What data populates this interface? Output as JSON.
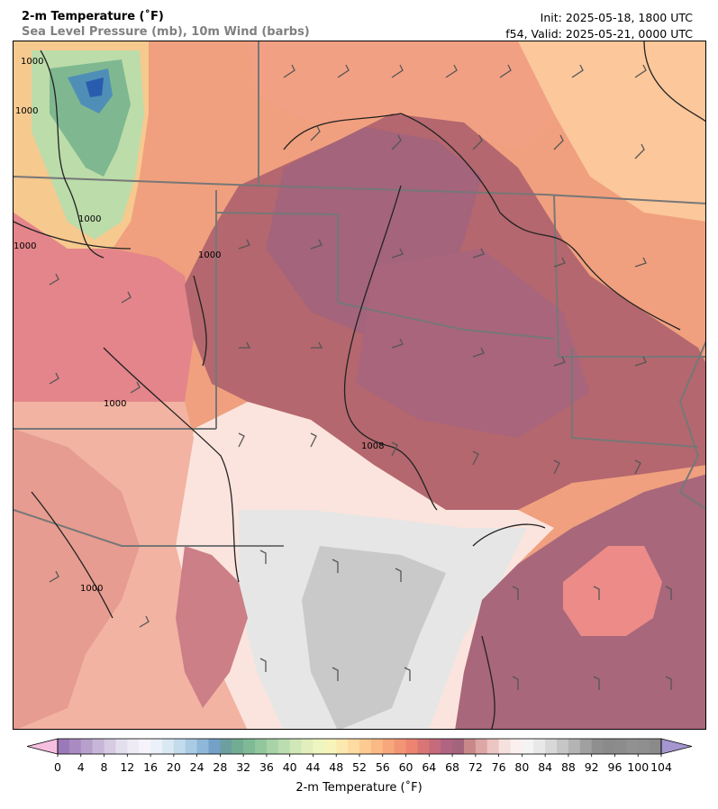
{
  "header": {
    "title": "2-m Temperature (˚F)",
    "subtitle": "Sea Level Pressure (mb), 10m Wind (barbs)",
    "init": "Init: 2025-05-18, 1800 UTC",
    "valid": "f54, Valid: 2025-05-21, 0000 UTC"
  },
  "map": {
    "isobar_labels": [
      "1000",
      "1000",
      "1000",
      "1000",
      "1000",
      "1000",
      "1000",
      "1008"
    ]
  },
  "colorbar": {
    "label": "2-m Temperature (˚F)",
    "ticks": [
      "0",
      "4",
      "8",
      "12",
      "16",
      "20",
      "24",
      "28",
      "32",
      "36",
      "40",
      "44",
      "48",
      "52",
      "56",
      "60",
      "64",
      "68",
      "72",
      "76",
      "80",
      "84",
      "88",
      "92",
      "96",
      "100",
      "104"
    ],
    "min": 0,
    "max": 104,
    "step": 2,
    "colors": [
      "#9b79b8",
      "#a98bc2",
      "#b8a0cc",
      "#c7b6d7",
      "#d6cbe2",
      "#e4dfed",
      "#eeebf4",
      "#f6f4fa",
      "#eaf1f8",
      "#d9e8f3",
      "#c2dbed",
      "#a9cbe4",
      "#8fb7d8",
      "#74a1c8",
      "#6e9fa0",
      "#72ac92",
      "#7fba96",
      "#92c79d",
      "#a7d3a7",
      "#bcddb0",
      "#d0e7b7",
      "#e2efbc",
      "#eff5c0",
      "#f6f3bb",
      "#fbe9b0",
      "#fddba1",
      "#fdcb92",
      "#fbb985",
      "#f7a77b",
      "#f29574",
      "#ec8471",
      "#d97675",
      "#c56b7b",
      "#b06482",
      "#a3647c",
      "#c98888",
      "#dca7a5",
      "#ebc6c3",
      "#f5e1de",
      "#fbf0ee",
      "#f4f4f4",
      "#e8e8e8",
      "#d8d8d8",
      "#c6c6c6",
      "#b4b4b4",
      "#a0a0a0",
      "#8f8f8f",
      "#8a8a8a",
      "#8c8c8c",
      "#919191",
      "#8f8f8f",
      "#8a8a8a"
    ],
    "under_color": "#f6bfe0",
    "over_color": "#a596cf"
  }
}
